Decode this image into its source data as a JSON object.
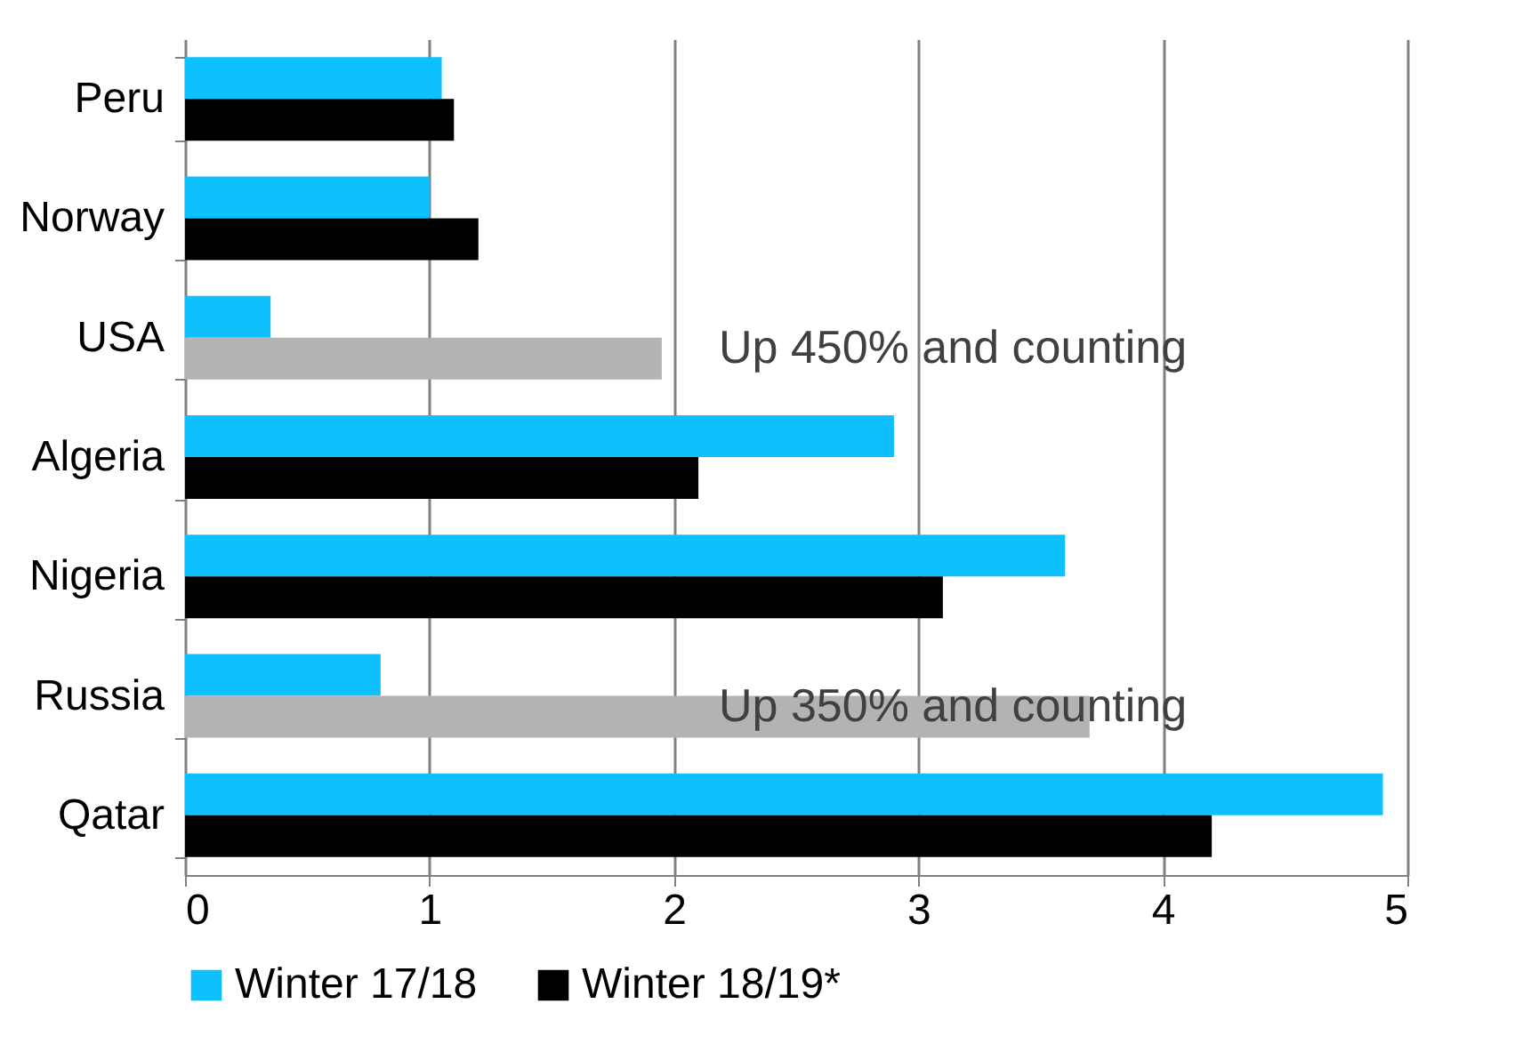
{
  "chart_data": {
    "type": "bar",
    "orientation": "horizontal",
    "categories": [
      "Peru",
      "Norway",
      "USA",
      "Algeria",
      "Nigeria",
      "Russia",
      "Qatar"
    ],
    "series": [
      {
        "name": "Winter 17/18",
        "color": "#0fc0ff",
        "values": [
          1.05,
          1.0,
          0.35,
          2.9,
          3.6,
          0.8,
          4.9
        ]
      },
      {
        "name": "Winter 18/19*",
        "color": "#000000",
        "colors": [
          "#000000",
          "#000000",
          "#b3b3b3",
          "#000000",
          "#000000",
          "#b3b3b3",
          "#000000"
        ],
        "values": [
          1.1,
          1.2,
          1.95,
          2.1,
          3.1,
          3.7,
          4.2
        ]
      }
    ],
    "xlim": [
      0,
      5
    ],
    "xticks": [
      0,
      1,
      2,
      3,
      4,
      5
    ],
    "grid": "x",
    "legend": "bottom",
    "annotations": [
      "Up 450% and counting",
      "Up 350% and counting"
    ]
  }
}
